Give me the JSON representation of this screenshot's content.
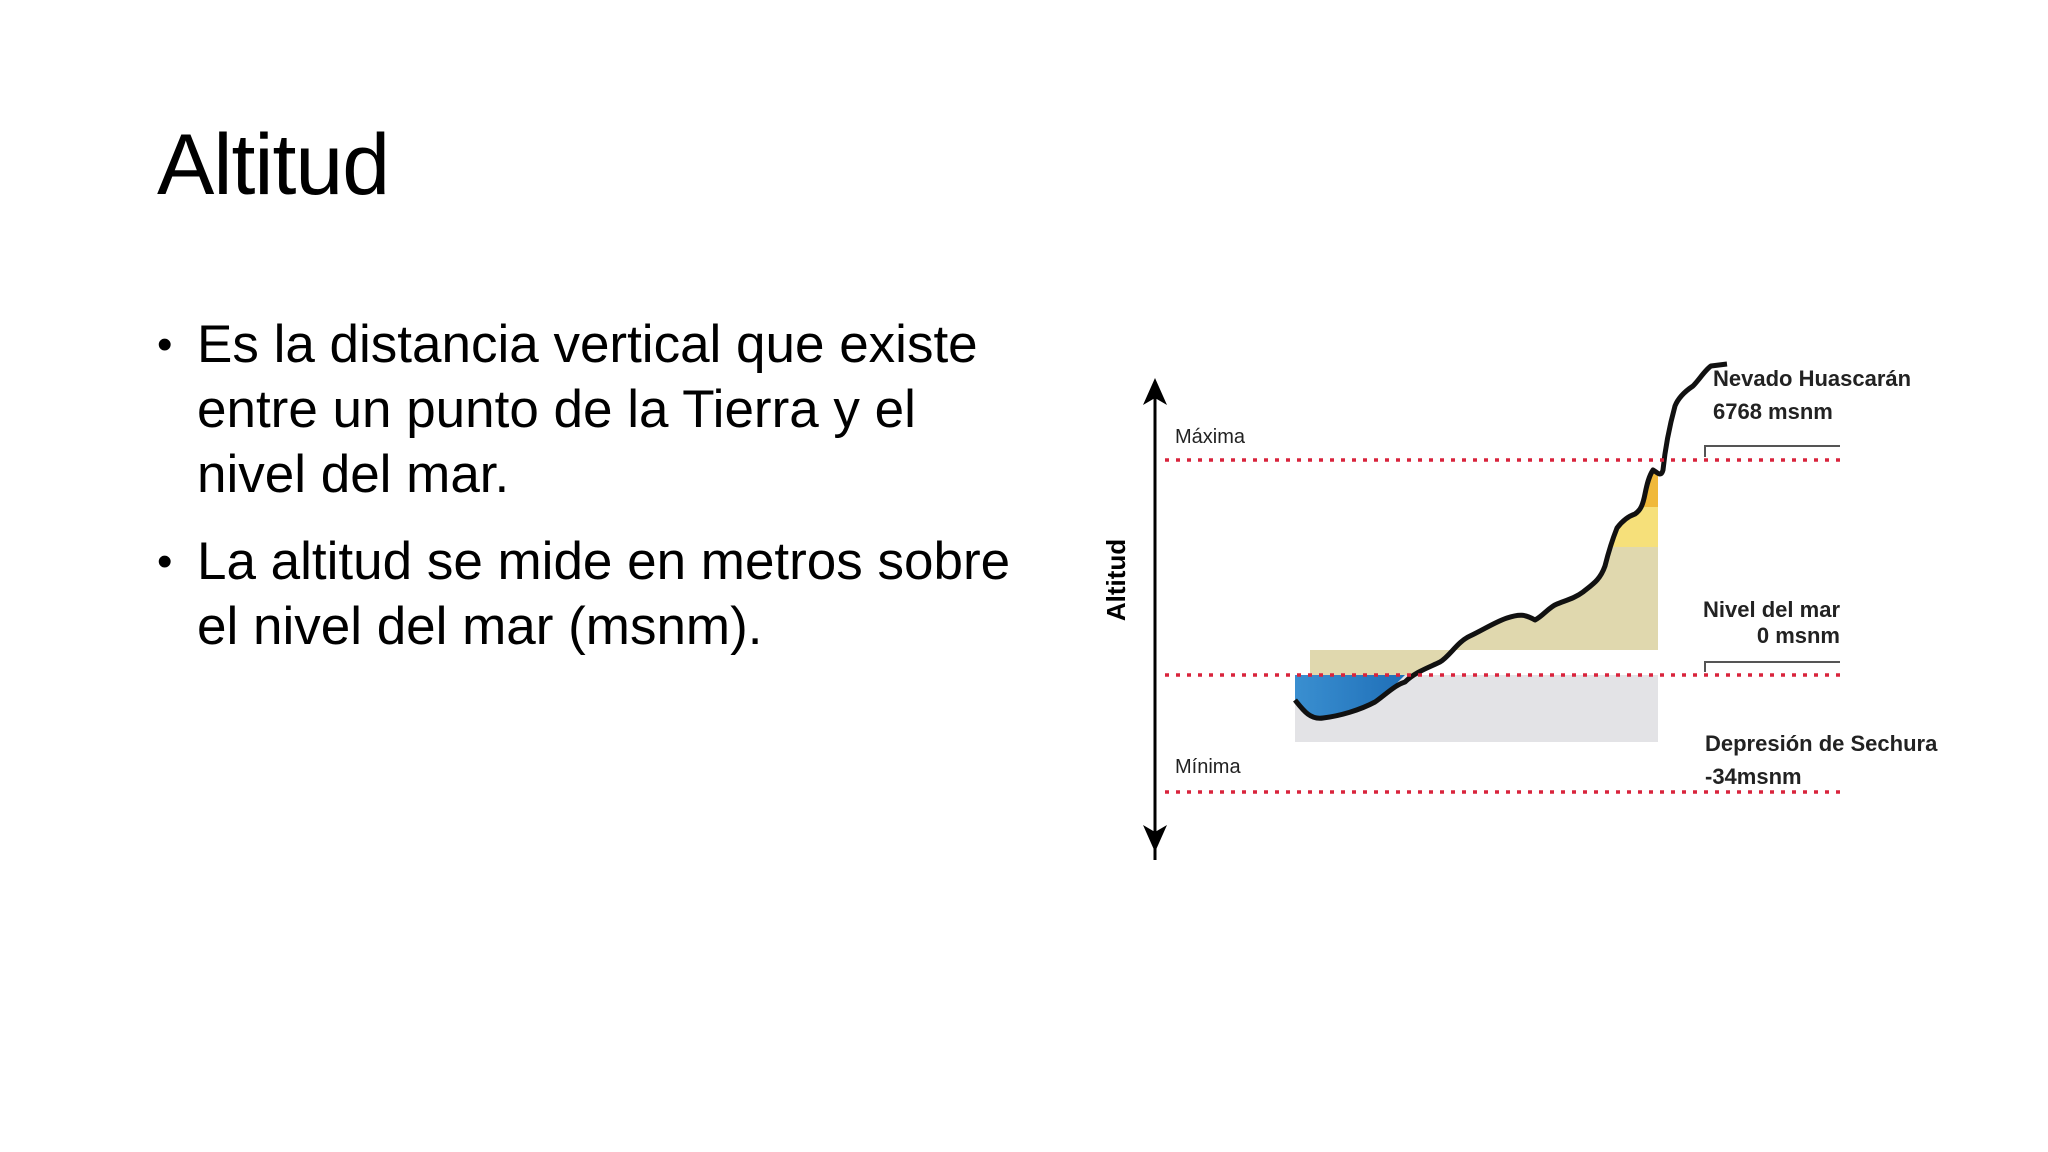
{
  "slide": {
    "title": "Altitud",
    "bullets": [
      "Es la distancia vertical que existe entre un punto de la Tierra y el nivel del mar.",
      "La altitud se mide en metros sobre el nivel del mar (msnm)."
    ],
    "bullet_symbol": "•"
  },
  "diagram": {
    "axis_label": "Altitud",
    "max_label": "Máxima",
    "min_label": "Mínima",
    "peak": {
      "name": "Nevado Huascarán",
      "value": "6768 msnm"
    },
    "sea_level": {
      "name": "Nivel del mar",
      "value": "0 msnm"
    },
    "depression": {
      "name": "Depresión de Sechura",
      "value": "-34msnm"
    },
    "colors": {
      "dotted_line": "#d9233c",
      "sea": "#3a8fd0",
      "band_top": "#c0141c",
      "band_dark_brown": "#8c5a26",
      "band_brown": "#c98a2a",
      "band_orange": "#f0b93a",
      "band_yellow": "#f6e07a",
      "band_beige": "#e0d8ae",
      "below_sea": "#e3e3e6"
    }
  }
}
